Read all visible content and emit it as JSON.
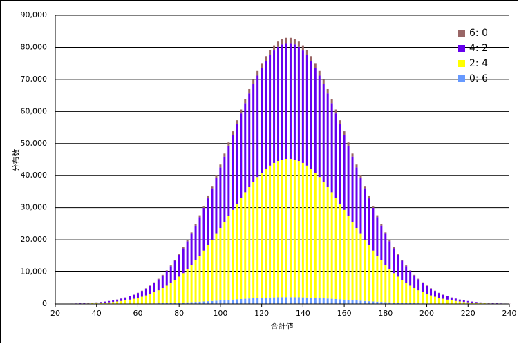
{
  "chart_data": {
    "type": "stacked_bar",
    "xlabel": "合計値",
    "ylabel": "分布数",
    "legend": "upper right",
    "grid": true,
    "x": [
      20,
      22,
      24,
      26,
      28,
      30,
      32,
      34,
      36,
      38,
      40,
      42,
      44,
      46,
      48,
      50,
      52,
      54,
      56,
      58,
      60,
      62,
      64,
      66,
      68,
      70,
      72,
      74,
      76,
      78,
      80,
      82,
      84,
      86,
      88,
      90,
      92,
      94,
      96,
      98,
      100,
      102,
      104,
      106,
      108,
      110,
      112,
      114,
      116,
      118,
      120,
      122,
      124,
      126,
      128,
      130,
      132,
      134,
      136,
      138,
      140,
      142,
      144,
      146,
      148,
      150,
      152,
      154,
      156,
      158,
      160,
      162,
      164,
      166,
      168,
      170,
      172,
      174,
      176,
      178,
      180,
      182,
      184,
      186,
      188,
      190,
      192,
      194,
      196,
      198,
      200,
      202,
      204,
      206,
      208,
      210,
      212,
      214,
      216,
      218,
      220,
      222,
      224,
      226,
      228,
      230,
      232,
      234,
      236,
      238,
      240
    ],
    "xlim": [
      20,
      240
    ],
    "xticks": [
      20,
      40,
      60,
      80,
      100,
      120,
      140,
      160,
      180,
      200,
      220,
      240
    ],
    "ylim": [
      0,
      90000
    ],
    "yticks": [
      0,
      {
        "value": 10000,
        "label": "10,000"
      },
      {
        "value": 20000,
        "label": "20,000"
      },
      {
        "value": 30000,
        "label": "30,000"
      },
      {
        "value": 40000,
        "label": "40,000"
      },
      {
        "value": 50000,
        "label": "50,000"
      },
      {
        "value": 60000,
        "label": "60,000"
      },
      {
        "value": 70000,
        "label": "70,000"
      },
      {
        "value": 80000,
        "label": "80,000"
      },
      {
        "value": 90000,
        "label": "90,000"
      }
    ],
    "series": [
      {
        "name": "0: 6",
        "color": "#6699ff",
        "values": [
          1,
          1,
          2,
          2,
          3,
          4,
          5,
          6,
          8,
          10,
          12,
          15,
          19,
          23,
          28,
          35,
          42,
          51,
          61,
          73,
          87,
          104,
          122,
          144,
          168,
          196,
          227,
          262,
          301,
          344,
          391,
          442,
          498,
          558,
          623,
          691,
          764,
          840,
          919,
          1002,
          1086,
          1172,
          1259,
          1345,
          1431,
          1515,
          1596,
          1674,
          1747,
          1815,
          1877,
          1931,
          1977,
          2015,
          2044,
          2064,
          2074,
          2074,
          2064,
          2044,
          2015,
          1977,
          1931,
          1877,
          1815,
          1747,
          1674,
          1596,
          1515,
          1431,
          1345,
          1259,
          1172,
          1086,
          1002,
          919,
          840,
          764,
          691,
          623,
          558,
          498,
          442,
          391,
          344,
          301,
          262,
          227,
          196,
          168,
          144,
          122,
          104,
          87,
          73,
          61,
          51,
          42,
          35,
          28,
          23,
          19,
          15,
          12,
          10,
          8,
          6,
          5,
          4,
          3,
          2
        ]
      },
      {
        "name": "2: 4",
        "color": "#ffff00",
        "values": [
          22,
          29,
          37,
          47,
          61,
          79,
          100,
          127,
          161,
          202,
          252,
          314,
          389,
          479,
          588,
          718,
          873,
          1056,
          1271,
          1524,
          1816,
          2155,
          2545,
          2992,
          3501,
          4076,
          4724,
          5448,
          6256,
          7146,
          8125,
          9194,
          10353,
          11606,
          12949,
          14377,
          15887,
          17473,
          19125,
          20834,
          22589,
          24375,
          26178,
          27981,
          29764,
          31513,
          33206,
          34823,
          36346,
          37756,
          39034,
          40164,
          41130,
          41921,
          42524,
          42930,
          43134,
          43134,
          42930,
          42524,
          41921,
          41130,
          40164,
          39034,
          37756,
          36346,
          34823,
          33206,
          31513,
          29764,
          27981,
          26178,
          24375,
          22589,
          20834,
          19125,
          17473,
          15887,
          14377,
          12949,
          11606,
          10353,
          9194,
          8125,
          7146,
          6256,
          5448,
          4724,
          4076,
          3501,
          2992,
          2545,
          2155,
          1816,
          1524,
          1271,
          1056,
          873,
          718,
          588,
          479,
          389,
          314,
          252,
          202,
          161,
          127,
          100,
          79,
          61,
          47
        ]
      },
      {
        "name": "4: 2",
        "color": "#6600ee",
        "values": [
          18,
          24,
          31,
          40,
          52,
          65,
          84,
          107,
          134,
          168,
          211,
          263,
          325,
          402,
          492,
          600,
          730,
          883,
          1063,
          1274,
          1520,
          1803,
          2130,
          2503,
          2929,
          3410,
          3951,
          4557,
          5232,
          5977,
          6796,
          7690,
          8661,
          9710,
          10832,
          12028,
          13290,
          14616,
          15998,
          17428,
          18896,
          20390,
          21898,
          23408,
          24899,
          26362,
          27779,
          29132,
          30406,
          31585,
          32653,
          33599,
          34408,
          35069,
          35572,
          35912,
          36083,
          36083,
          35912,
          35572,
          35069,
          34408,
          33599,
          32653,
          31585,
          30406,
          29132,
          27779,
          26362,
          24899,
          23408,
          21898,
          20390,
          18896,
          17428,
          15998,
          14616,
          13290,
          12028,
          10832,
          9710,
          8661,
          7690,
          6796,
          5977,
          5232,
          4557,
          3951,
          3410,
          2929,
          2503,
          2130,
          1803,
          1520,
          1274,
          1063,
          883,
          730,
          600,
          492,
          402,
          325,
          263,
          211,
          168,
          134,
          107,
          84,
          65,
          52,
          40
        ]
      },
      {
        "name": "6: 0",
        "color": "#996666",
        "values": [
          1,
          1,
          1,
          2,
          2,
          3,
          4,
          5,
          6,
          8,
          10,
          12,
          15,
          18,
          23,
          28,
          34,
          41,
          49,
          59,
          70,
          83,
          98,
          115,
          135,
          157,
          182,
          210,
          241,
          275,
          313,
          354,
          398,
          446,
          498,
          553,
          611,
          672,
          736,
          801,
          869,
          938,
          1007,
          1076,
          1145,
          1212,
          1277,
          1339,
          1398,
          1452,
          1501,
          1545,
          1582,
          1612,
          1636,
          1651,
          1659,
          1659,
          1651,
          1636,
          1612,
          1582,
          1545,
          1501,
          1452,
          1398,
          1339,
          1277,
          1212,
          1145,
          1076,
          1007,
          938,
          869,
          801,
          736,
          672,
          611,
          553,
          498,
          446,
          398,
          354,
          313,
          275,
          241,
          210,
          182,
          157,
          135,
          115,
          98,
          83,
          70,
          59,
          49,
          41,
          34,
          28,
          23,
          18,
          15,
          12,
          10,
          8,
          6,
          5,
          4,
          3,
          2,
          2
        ]
      }
    ]
  }
}
